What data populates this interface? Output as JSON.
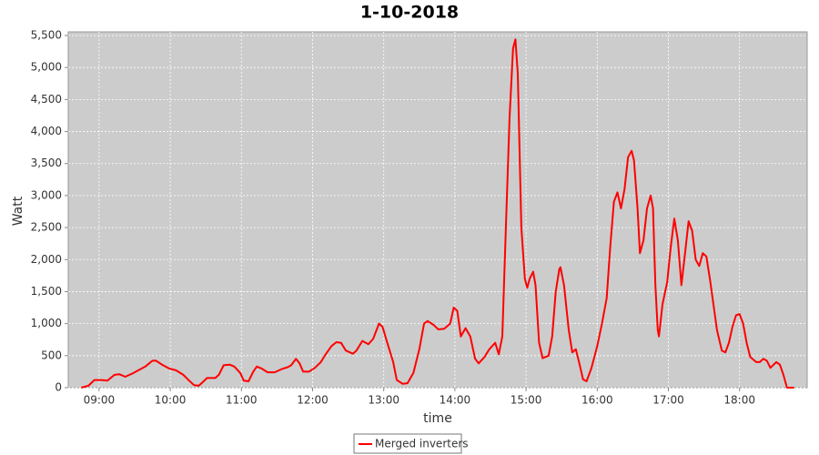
{
  "chart_data": {
    "type": "line",
    "title": "1-10-2018",
    "x_label": "time",
    "y_label": "Watt",
    "x": [
      "08:45",
      "08:51",
      "08:56",
      "09:02",
      "09:07",
      "09:13",
      "09:17",
      "09:22",
      "09:28",
      "09:33",
      "09:39",
      "09:45",
      "09:48",
      "09:53",
      "09:59",
      "10:05",
      "10:11",
      "10:16",
      "10:20",
      "10:24",
      "10:27",
      "10:31",
      "10:38",
      "10:41",
      "10:45",
      "10:50",
      "10:54",
      "10:59",
      "11:02",
      "11:06",
      "11:10",
      "11:13",
      "11:17",
      "11:22",
      "11:28",
      "11:34",
      "11:39",
      "11:42",
      "11:46",
      "11:49",
      "11:52",
      "11:57",
      "12:02",
      "12:07",
      "12:11",
      "12:16",
      "12:20",
      "12:24",
      "12:28",
      "12:34",
      "12:37",
      "12:42",
      "12:47",
      "12:51",
      "12:56",
      "12:59",
      "13:03",
      "13:08",
      "13:11",
      "13:16",
      "13:20",
      "13:25",
      "13:30",
      "13:34",
      "13:37",
      "13:42",
      "13:46",
      "13:51",
      "13:56",
      "13:59",
      "14:02",
      "14:05",
      "14:09",
      "14:13",
      "14:17",
      "14:20",
      "14:25",
      "14:29",
      "14:34",
      "14:37",
      "14:40",
      "14:43",
      "14:46",
      "14:49",
      "14:51",
      "14:53",
      "14:56",
      "14:59",
      "15:01",
      "15:03",
      "15:06",
      "15:08",
      "15:11",
      "15:14",
      "15:19",
      "15:22",
      "15:25",
      "15:28",
      "15:29",
      "15:32",
      "15:36",
      "15:39",
      "15:42",
      "15:45",
      "15:48",
      "15:51",
      "15:55",
      "16:00",
      "16:04",
      "16:08",
      "16:11",
      "16:14",
      "16:17",
      "16:20",
      "16:23",
      "16:26",
      "16:29",
      "16:31",
      "16:34",
      "16:36",
      "16:39",
      "16:42",
      "16:45",
      "16:47",
      "16:49",
      "16:51",
      "16:52",
      "16:55",
      "16:59",
      "17:02",
      "17:05",
      "17:08",
      "17:11",
      "17:14",
      "17:17",
      "17:20",
      "17:23",
      "17:26",
      "17:29",
      "17:32",
      "17:35",
      "17:38",
      "17:41",
      "17:45",
      "17:48",
      "17:51",
      "17:54",
      "17:57",
      "18:00",
      "18:03",
      "18:06",
      "18:09",
      "18:14",
      "18:17",
      "18:20",
      "18:23",
      "18:26",
      "18:31",
      "18:34",
      "18:37",
      "18:40",
      "18:46"
    ],
    "series": [
      {
        "name": "Merged inverters",
        "color": "#ff0000",
        "values": [
          0,
          30,
          120,
          120,
          110,
          200,
          210,
          170,
          220,
          270,
          330,
          420,
          420,
          360,
          300,
          270,
          200,
          110,
          40,
          30,
          80,
          150,
          150,
          200,
          350,
          360,
          330,
          230,
          110,
          100,
          250,
          330,
          300,
          240,
          240,
          290,
          320,
          350,
          450,
          380,
          250,
          250,
          310,
          400,
          520,
          650,
          710,
          700,
          580,
          530,
          580,
          730,
          680,
          760,
          1000,
          950,
          700,
          400,
          120,
          60,
          70,
          230,
          600,
          1000,
          1040,
          980,
          910,
          920,
          1000,
          1250,
          1200,
          800,
          930,
          800,
          450,
          380,
          480,
          600,
          700,
          520,
          800,
          2500,
          4200,
          5300,
          5440,
          4900,
          2500,
          1700,
          1560,
          1700,
          1810,
          1600,
          700,
          460,
          500,
          800,
          1500,
          1850,
          1880,
          1600,
          900,
          550,
          600,
          370,
          130,
          100,
          300,
          650,
          1000,
          1400,
          2200,
          2900,
          3050,
          2800,
          3100,
          3600,
          3700,
          3550,
          2800,
          2100,
          2300,
          2800,
          3000,
          2800,
          1600,
          900,
          800,
          1300,
          1650,
          2200,
          2640,
          2300,
          1600,
          2100,
          2600,
          2450,
          2000,
          1900,
          2100,
          2050,
          1700,
          1300,
          900,
          580,
          550,
          700,
          950,
          1130,
          1150,
          1000,
          700,
          480,
          400,
          400,
          450,
          420,
          310,
          400,
          360,
          200,
          0,
          0
        ]
      }
    ],
    "xlim": [
      "08:34",
      "18:57"
    ],
    "xticks": [
      "09:00",
      "10:00",
      "11:00",
      "12:00",
      "13:00",
      "14:00",
      "15:00",
      "16:00",
      "17:00",
      "18:00"
    ],
    "ylim": [
      0,
      5500
    ],
    "yticks": [
      0,
      500,
      {
        "value": 1000,
        "label": "1,000"
      },
      {
        "value": 1500,
        "label": "1,500"
      },
      {
        "value": 2000,
        "label": "2,000"
      },
      {
        "value": 2500,
        "label": "2,500"
      },
      {
        "value": 3000,
        "label": "3,000"
      },
      {
        "value": 3500,
        "label": "3,500"
      },
      {
        "value": 4000,
        "label": "4,000"
      },
      {
        "value": 4500,
        "label": "4,500"
      },
      {
        "value": 5000,
        "label": "5,000"
      },
      {
        "value": 5500,
        "label": "5,500"
      }
    ],
    "grid": true,
    "legend": "bottom"
  }
}
